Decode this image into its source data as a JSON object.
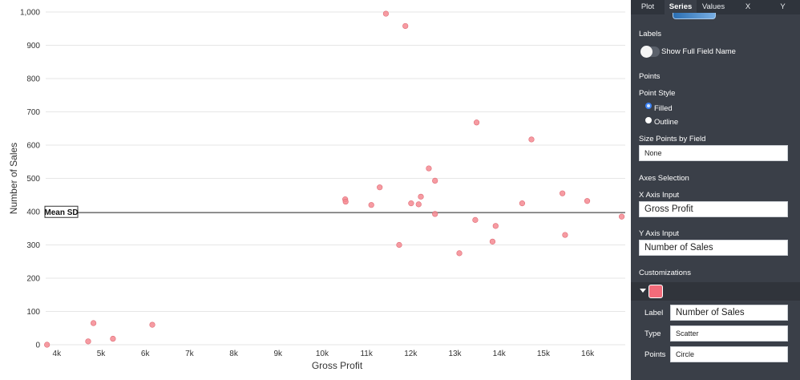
{
  "chart_data": {
    "type": "scatter",
    "xlabel": "Gross Profit",
    "ylabel": "Number of Sales",
    "xlim": [
      3750,
      16850
    ],
    "ylim": [
      0,
      1000
    ],
    "x_ticks": [
      4000,
      5000,
      6000,
      7000,
      8000,
      9000,
      10000,
      11000,
      12000,
      13000,
      14000,
      15000,
      16000
    ],
    "x_tick_labels": [
      "4k",
      "5k",
      "6k",
      "7k",
      "8k",
      "9k",
      "10k",
      "11k",
      "12k",
      "13k",
      "14k",
      "15k",
      "16k"
    ],
    "y_ticks": [
      0,
      100,
      200,
      300,
      400,
      500,
      600,
      700,
      800,
      900,
      1000
    ],
    "y_tick_labels": [
      "0",
      "100",
      "200",
      "300",
      "400",
      "500",
      "600",
      "700",
      "800",
      "900",
      "1,000"
    ],
    "grid": true,
    "reference_line": {
      "label": "Mean SD",
      "y": 397
    },
    "marker_color": "#f48a92",
    "series": [
      {
        "points": [
          [
            3780,
            0
          ],
          [
            4710,
            10
          ],
          [
            4830,
            65
          ],
          [
            5270,
            18
          ],
          [
            6160,
            60
          ],
          [
            10520,
            437
          ],
          [
            10530,
            430
          ],
          [
            11110,
            420
          ],
          [
            11300,
            473
          ],
          [
            11440,
            995
          ],
          [
            11740,
            300
          ],
          [
            11880,
            958
          ],
          [
            12010,
            425
          ],
          [
            12180,
            422
          ],
          [
            12230,
            445
          ],
          [
            12410,
            530
          ],
          [
            12550,
            493
          ],
          [
            12550,
            393
          ],
          [
            13100,
            275
          ],
          [
            13460,
            375
          ],
          [
            13490,
            668
          ],
          [
            13850,
            310
          ],
          [
            13920,
            357
          ],
          [
            14520,
            425
          ],
          [
            14730,
            617
          ],
          [
            15430,
            455
          ],
          [
            15490,
            330
          ],
          [
            15990,
            432
          ],
          [
            16770,
            385
          ]
        ]
      }
    ]
  },
  "panel": {
    "tabs": [
      "Plot",
      "Series",
      "Values",
      "X",
      "Y"
    ],
    "active_tab": "Series",
    "labels_header": "Labels",
    "show_full_field_name": "Show Full Field Name",
    "points_header": "Points",
    "point_style_label": "Point Style",
    "point_style_options": [
      "Filled",
      "Outline"
    ],
    "point_style_selected": "Filled",
    "size_points_label": "Size Points by Field",
    "size_points_value": "None",
    "axes_selection_header": "Axes Selection",
    "x_axis_input_label": "X Axis Input",
    "x_axis_input_value": "Gross Profit",
    "y_axis_input_label": "Y Axis Input",
    "y_axis_input_value": "Number of Sales",
    "customizations_header": "Customizations",
    "series_color": "#f26b7a",
    "label_field_label": "Label",
    "label_field_value": "Number of Sales",
    "type_field_label": "Type",
    "type_field_value": "Scatter",
    "points_field_label": "Points",
    "points_field_value": "Circle"
  }
}
